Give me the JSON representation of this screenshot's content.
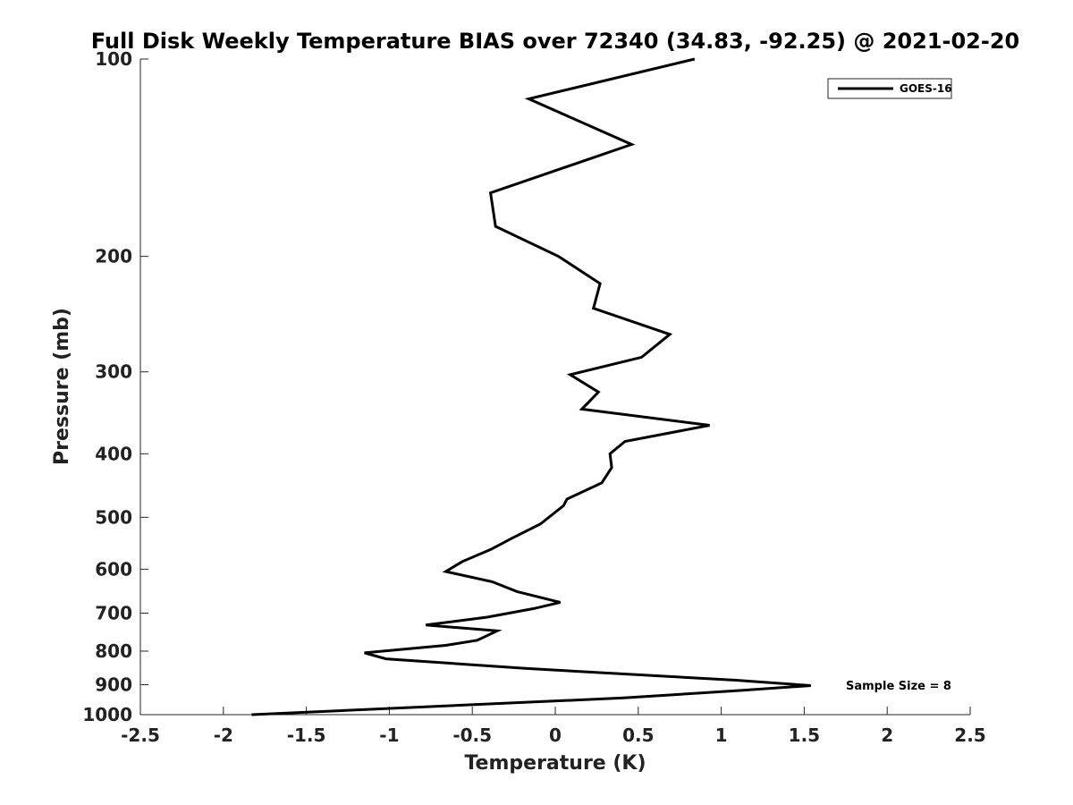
{
  "chart_data": {
    "type": "line",
    "title": "Full Disk Weekly Temperature BIAS over 72340 (34.83, -92.25) @ 2021-02-20",
    "xlabel": "Temperature (K)",
    "ylabel": "Pressure (mb)",
    "xlim": [
      -2.5,
      2.5
    ],
    "ylim": [
      1000,
      100
    ],
    "y_scale": "log",
    "y_reversed": true,
    "grid": false,
    "legend_position": "top-right",
    "x_ticks": [
      "-2.5",
      "-2",
      "-1.5",
      "-1",
      "-0.5",
      "0",
      "0.5",
      "1",
      "1.5",
      "2",
      "2.5"
    ],
    "y_ticks": [
      "100",
      "200",
      "300",
      "400",
      "500",
      "600",
      "700",
      "800",
      "900",
      "1000"
    ],
    "annotation": "Sample Size = 8",
    "series": [
      {
        "name": "GOES-16",
        "color": "#000000",
        "points": [
          [
            0.84,
            100
          ],
          [
            -0.16,
            115
          ],
          [
            0.46,
            135
          ],
          [
            -0.39,
            160
          ],
          [
            -0.36,
            180
          ],
          [
            0.02,
            200
          ],
          [
            0.27,
            220
          ],
          [
            0.23,
            240
          ],
          [
            0.69,
            263
          ],
          [
            0.52,
            285
          ],
          [
            0.09,
            303
          ],
          [
            0.26,
            322
          ],
          [
            0.16,
            342
          ],
          [
            0.93,
            362
          ],
          [
            0.42,
            383
          ],
          [
            0.33,
            400
          ],
          [
            0.34,
            420
          ],
          [
            0.28,
            443
          ],
          [
            0.07,
            469
          ],
          [
            0.05,
            480
          ],
          [
            -0.09,
            512
          ],
          [
            -0.26,
            538
          ],
          [
            -0.39,
            560
          ],
          [
            -0.56,
            584
          ],
          [
            -0.66,
            605
          ],
          [
            -0.38,
            627
          ],
          [
            -0.23,
            649
          ],
          [
            0.03,
            674
          ],
          [
            -0.13,
            689
          ],
          [
            -0.41,
            710
          ],
          [
            -0.78,
            730
          ],
          [
            -0.35,
            745
          ],
          [
            -0.47,
            770
          ],
          [
            -0.66,
            784
          ],
          [
            -1.15,
            805
          ],
          [
            -1.02,
            822
          ],
          [
            -0.18,
            850
          ],
          [
            1.09,
            886
          ],
          [
            1.54,
            903
          ],
          [
            1.1,
            919
          ],
          [
            0.41,
            943
          ],
          [
            -1.83,
            1000
          ]
        ]
      }
    ]
  }
}
